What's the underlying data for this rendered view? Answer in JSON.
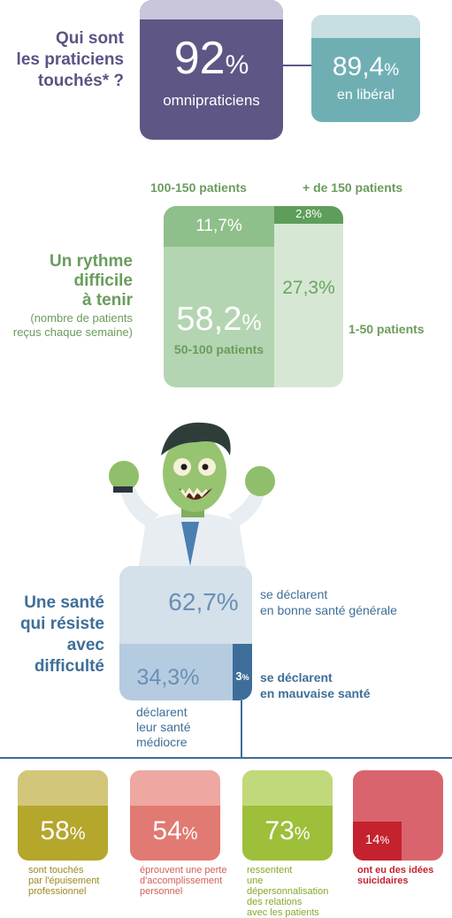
{
  "practitioners": {
    "title_line1": "Qui sont",
    "title_line2": "les praticiens",
    "title_line3": "touchés* ?",
    "main_value": "92",
    "main_pct": "%",
    "main_label": "omnipraticiens",
    "secondary_value": "89,4",
    "secondary_pct": "%",
    "secondary_label": "en libéral",
    "colors": {
      "main": "#5e5685",
      "secondary": "#6fafb4"
    }
  },
  "rhythm": {
    "title_line1": "Un rythme",
    "title_line2": "difficile",
    "title_line3": "à tenir",
    "note_line1": "(nombre de patients",
    "note_line2": "reçus chaque semaine)",
    "label_100_150": "100-150 patients",
    "label_150_plus": "+ de 150 patients",
    "label_1_50": "1-50 patients",
    "label_50_100": "50-100 patients",
    "value_100_150": "11,7%",
    "value_150_plus": "2,8%",
    "value_1_50": "27,3%",
    "value_50_100": "58,2",
    "value_50_100_pct": "%",
    "colors": {
      "accent": "#6a9c5c"
    }
  },
  "illustration": {
    "icon": "zombie-doctor-illustration"
  },
  "health": {
    "title_line1": "Une santé",
    "title_line2": "qui résiste",
    "title_line3": "avec",
    "title_line4": "difficulté",
    "good_value": "62,7%",
    "good_label_line1": "se déclarent",
    "good_label_line2": "en bonne santé générale",
    "mediocre_value": "34,3%",
    "mediocre_label_line1": "déclarent",
    "mediocre_label_line2": "leur santé",
    "mediocre_label_line3": "médiocre",
    "bad_value": "3",
    "bad_pct": "%",
    "bad_label_line1": "se déclarent",
    "bad_label_line2": "en mauvaise santé",
    "colors": {
      "accent": "#3d6e99"
    }
  },
  "stats": [
    {
      "value": "58",
      "pct": "%",
      "caption_lines": [
        "sont touchés",
        "par l'épuisement",
        "professionnel"
      ],
      "color": "#b5a62c",
      "top_color": "#d2c67a",
      "caption_color": "#9a8a1f"
    },
    {
      "value": "54",
      "pct": "%",
      "caption_lines": [
        "éprouvent une perte",
        "d'accomplissement",
        "personnel"
      ],
      "color": "#e07a72",
      "top_color": "#eea8a1",
      "caption_color": "#d35f55"
    },
    {
      "value": "73",
      "pct": "%",
      "caption_lines": [
        "ressentent",
        "une dépersonnalisation",
        "des relations",
        "avec les patients"
      ],
      "color": "#9dbf3a",
      "top_color": "#c1d97a",
      "caption_color": "#86a82a"
    },
    {
      "value": "14",
      "pct": "%",
      "caption_lines": [
        "ont eu des idées",
        "suicidaires"
      ],
      "color": "#d9646d",
      "top_color": "#d9646d",
      "caption_color": "#c4222e"
    }
  ]
}
